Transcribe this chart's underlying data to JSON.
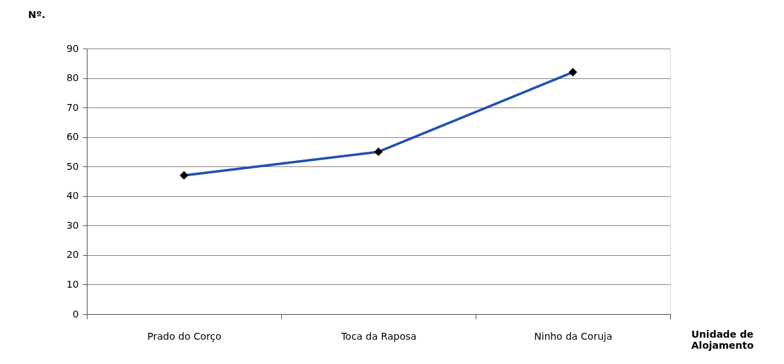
{
  "chart_data": {
    "type": "line",
    "ylabel": "Nº.",
    "xlabel": "Unidade de Alojamento",
    "categories": [
      "Prado do Corço",
      "Toca da Raposa",
      "Ninho da Coruja"
    ],
    "series": [
      {
        "color": "#1f4fb5",
        "values": [
          47,
          55,
          82
        ]
      }
    ],
    "ylim": [
      0,
      90
    ],
    "yticks": [
      0,
      10,
      20,
      30,
      40,
      50,
      60,
      70,
      80,
      90
    ],
    "grid": "y",
    "marker": "diamond",
    "line_style": "solid"
  }
}
